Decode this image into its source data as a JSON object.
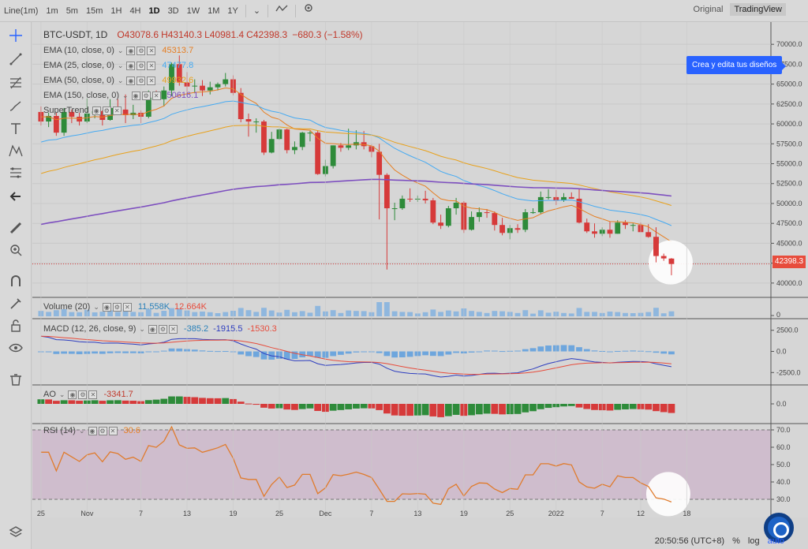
{
  "toolbar": {
    "intervals": [
      "Line(1m)",
      "1m",
      "5m",
      "15m",
      "1H",
      "4H",
      "1D",
      "3D",
      "1W",
      "1M",
      "1Y"
    ],
    "active_interval": "1D",
    "views": [
      "Original",
      "TradingView"
    ],
    "active_view": "TradingView"
  },
  "symbol": {
    "name": "BTC-USDT, 1D",
    "open": "O43078.6",
    "high": "H43140.3",
    "low": "L40981.4",
    "close": "C42398.3",
    "change": "−680.3 (−1.58%)"
  },
  "indicators": {
    "ema10": {
      "label": "EMA (10, close, 0)",
      "value": "45313.7",
      "color": "#e67e22"
    },
    "ema25": {
      "label": "EMA (25, close, 0)",
      "value": "47477.8",
      "color": "#45aaf2"
    },
    "ema50": {
      "label": "EMA (50, close, 0)",
      "value": "49932.6",
      "color": "#e8a11b"
    },
    "ema150": {
      "label": "EMA (150, close, 0)",
      "value": "50616.1",
      "color": "#7d4fbf"
    },
    "supertrend": {
      "label": "SuperTrend"
    },
    "volume": {
      "label": "Volume (20)",
      "v1": "11.558K",
      "v2": "12.664K"
    },
    "macd": {
      "label": "MACD (12, 26, close, 9)",
      "v1": "-385.2",
      "v2": "-1915.5",
      "v3": "-1530.3"
    },
    "ao": {
      "label": "AO",
      "value": "-3341.7"
    },
    "rsi": {
      "label": "RSI (14)",
      "value": "30.6"
    }
  },
  "tooltip": "Crea y edita tus diseños",
  "price_tag": "42398.3",
  "price_axis": [
    "70000.0",
    "67500.0",
    "65000.0",
    "62500.0",
    "60000.0",
    "57500.0",
    "55000.0",
    "52500.0",
    "50000.0",
    "47500.0",
    "45000.0",
    "42500.0",
    "40000.0"
  ],
  "volume_axis": [
    "0"
  ],
  "macd_axis": [
    "2500.0",
    "0.0",
    "-2500.0"
  ],
  "ao_axis": [
    "0.0"
  ],
  "rsi_axis": [
    "70.0",
    "60.0",
    "50.0",
    "40.0",
    "30.0"
  ],
  "time_axis": [
    "25",
    "Nov",
    "7",
    "13",
    "19",
    "25",
    "Dec",
    "7",
    "13",
    "19",
    "25",
    "2022",
    "7",
    "12",
    "18"
  ],
  "status": {
    "time": "20:50:56 (UTC+8)",
    "percent": "%",
    "log": "log",
    "auto": "auto"
  },
  "chart_data": {
    "type": "candlestick",
    "title": "BTC-USDT, 1D",
    "ylim": [
      40000,
      70000
    ],
    "candles": [
      [
        61500,
        62200,
        59800,
        60300
      ],
      [
        60300,
        61400,
        59600,
        61000
      ],
      [
        61000,
        61400,
        58500,
        58900
      ],
      [
        58900,
        62000,
        58500,
        61500
      ],
      [
        61500,
        61800,
        60100,
        60900
      ],
      [
        60900,
        61400,
        59800,
        60300
      ],
      [
        60300,
        63200,
        60100,
        61300
      ],
      [
        61300,
        62200,
        60700,
        61600
      ],
      [
        61600,
        61700,
        59800,
        60500
      ],
      [
        60500,
        63100,
        60400,
        62000
      ],
      [
        62000,
        63100,
        61300,
        61800
      ],
      [
        61800,
        63700,
        60100,
        61100
      ],
      [
        61100,
        62400,
        60600,
        61400
      ],
      [
        61400,
        61700,
        60100,
        60900
      ],
      [
        60900,
        64200,
        60700,
        63300
      ],
      [
        63300,
        64200,
        63000,
        63100
      ],
      [
        63100,
        64700,
        62200,
        64200
      ],
      [
        64200,
        67700,
        63500,
        67500
      ],
      [
        67500,
        68600,
        64800,
        65200
      ],
      [
        65200,
        66500,
        63800,
        64700
      ],
      [
        64700,
        65600,
        63900,
        64800
      ],
      [
        64800,
        65500,
        63500,
        64200
      ],
      [
        64200,
        65300,
        63700,
        64600
      ],
      [
        64600,
        65200,
        64200,
        65000
      ],
      [
        65000,
        66400,
        64700,
        65600
      ],
      [
        65600,
        66100,
        63600,
        63900
      ],
      [
        63900,
        64500,
        60200,
        60600
      ],
      [
        60600,
        61300,
        58400,
        60300
      ],
      [
        60300,
        60700,
        58900,
        60300
      ],
      [
        60300,
        60500,
        56100,
        56400
      ],
      [
        56400,
        59000,
        56300,
        58100
      ],
      [
        58100,
        59400,
        58000,
        59300
      ],
      [
        59300,
        59400,
        56300,
        56700
      ],
      [
        56700,
        57800,
        56200,
        57100
      ],
      [
        57100,
        59000,
        56700,
        58900
      ],
      [
        58900,
        59100,
        57800,
        58900
      ],
      [
        58900,
        59200,
        53600,
        53700
      ],
      [
        53700,
        55500,
        53400,
        54700
      ],
      [
        54700,
        57300,
        54400,
        57300
      ],
      [
        57300,
        57600,
        56500,
        57000
      ],
      [
        57000,
        59400,
        56700,
        57300
      ],
      [
        57300,
        59200,
        56800,
        57700
      ],
      [
        57700,
        59100,
        56800,
        57200
      ],
      [
        57200,
        57400,
        55800,
        56500
      ],
      [
        56500,
        57500,
        48000,
        53600
      ],
      [
        53600,
        53800,
        41700,
        49400
      ],
      [
        49400,
        50100,
        47900,
        49400
      ],
      [
        49400,
        51000,
        49200,
        50600
      ],
      [
        50600,
        51900,
        50200,
        50500
      ],
      [
        50500,
        51000,
        50200,
        50600
      ],
      [
        50600,
        51600,
        50000,
        50400
      ],
      [
        50400,
        50700,
        47400,
        47600
      ],
      [
        47600,
        48600,
        46800,
        47200
      ],
      [
        47200,
        49700,
        47000,
        49400
      ],
      [
        49400,
        50700,
        48600,
        50100
      ],
      [
        50100,
        50300,
        46300,
        46700
      ],
      [
        46700,
        49000,
        46600,
        48300
      ],
      [
        48300,
        49500,
        47700,
        48900
      ],
      [
        48900,
        49300,
        48200,
        48800
      ],
      [
        48800,
        49000,
        46600,
        47300
      ],
      [
        47300,
        48200,
        46000,
        46300
      ],
      [
        46300,
        47300,
        45500,
        46900
      ],
      [
        46900,
        47400,
        46300,
        46700
      ],
      [
        46700,
        49300,
        46400,
        48900
      ],
      [
        48900,
        49400,
        48700,
        48900
      ],
      [
        48900,
        51500,
        48700,
        50800
      ],
      [
        50800,
        51800,
        50500,
        50800
      ],
      [
        50800,
        51700,
        49800,
        50400
      ],
      [
        50400,
        51300,
        50200,
        50800
      ],
      [
        50800,
        51400,
        50600,
        50600
      ],
      [
        50600,
        51800,
        47500,
        47600
      ],
      [
        47600,
        48100,
        46300,
        46500
      ],
      [
        46500,
        47500,
        45700,
        46200
      ],
      [
        46200,
        47000,
        45900,
        46700
      ],
      [
        46700,
        47700,
        45700,
        46200
      ],
      [
        46200,
        47900,
        46200,
        47600
      ],
      [
        47600,
        47900,
        46800,
        47300
      ],
      [
        47300,
        47500,
        46500,
        47300
      ],
      [
        47300,
        47600,
        46400,
        46400
      ],
      [
        46400,
        47400,
        45700,
        45800
      ],
      [
        45800,
        47000,
        42600,
        43400
      ],
      [
        43400,
        43700,
        42800,
        43100
      ],
      [
        43078.6,
        43140.3,
        40981.4,
        42398.3
      ]
    ]
  }
}
